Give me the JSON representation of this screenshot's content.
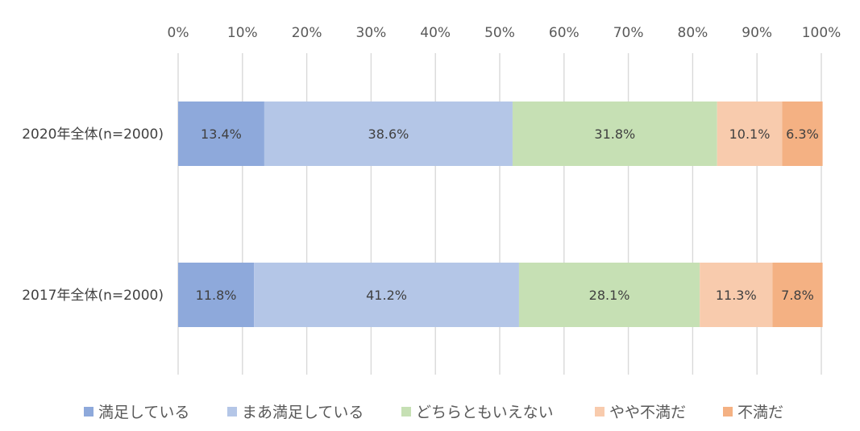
{
  "chart_data": {
    "type": "bar",
    "orientation": "horizontal",
    "stacked": "percent",
    "title": "",
    "xlabel": "",
    "ylabel": "",
    "xlim": [
      0,
      100
    ],
    "x_ticks": [
      0,
      10,
      20,
      30,
      40,
      50,
      60,
      70,
      80,
      90,
      100
    ],
    "x_tick_labels": [
      "0%",
      "10%",
      "20%",
      "30%",
      "40%",
      "50%",
      "60%",
      "70%",
      "80%",
      "90%",
      "100%"
    ],
    "x_axis_position": "top",
    "grid": "vertical",
    "legend_position": "bottom",
    "categories": [
      "2020年全体(n=2000)",
      "2017年全体(n=2000)"
    ],
    "series": [
      {
        "name": "満足している",
        "values": [
          13.4,
          11.8
        ],
        "labels": [
          "13.4%",
          "11.8%"
        ],
        "color": "#8EA9DB"
      },
      {
        "name": "まあ満足している",
        "values": [
          38.6,
          41.2
        ],
        "labels": [
          "38.6%",
          "41.2%"
        ],
        "color": "#B4C6E7"
      },
      {
        "name": "どちらともいえない",
        "values": [
          31.8,
          28.1
        ],
        "labels": [
          "31.8%",
          "28.1%"
        ],
        "color": "#C6E0B4"
      },
      {
        "name": "やや不満だ",
        "values": [
          10.1,
          11.3
        ],
        "labels": [
          "10.1%",
          "11.3%"
        ],
        "color": "#F8CBAD"
      },
      {
        "name": "不満だ",
        "values": [
          6.3,
          7.8
        ],
        "labels": [
          "6.3%",
          "7.8%"
        ],
        "color": "#F4B183"
      }
    ]
  }
}
